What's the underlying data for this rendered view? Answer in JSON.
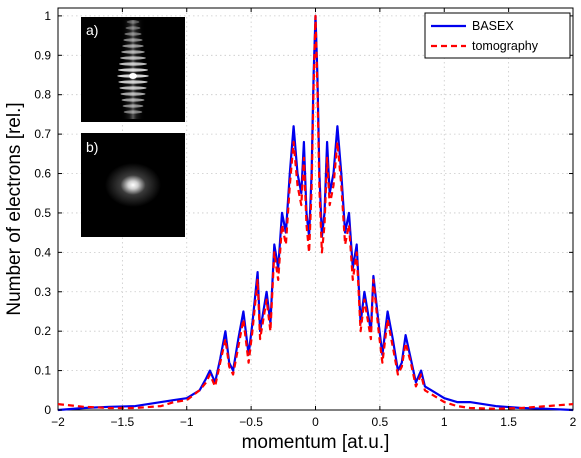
{
  "chart_data": {
    "type": "line",
    "xlabel": "momentum [at.u.]",
    "ylabel": "Number of electrons [rel.]",
    "xlim": [
      -2,
      2
    ],
    "ylim": [
      0,
      1.02
    ],
    "xticks": [
      -2,
      -1.5,
      -1,
      -0.5,
      0,
      0.5,
      1,
      1.5,
      2
    ],
    "yticks": [
      0,
      0.1,
      0.2,
      0.3,
      0.4,
      0.5,
      0.6,
      0.7,
      0.8,
      0.9,
      1
    ],
    "xtick_labels": [
      "−2",
      "−1.5",
      "−1",
      "−0.5",
      "0",
      "0.5",
      "1",
      "1.5",
      "2"
    ],
    "ytick_labels": [
      "0",
      "0.1",
      "0.2",
      "0.3",
      "0.4",
      "0.5",
      "0.6",
      "0.7",
      "0.8",
      "0.9",
      "1"
    ],
    "grid": true,
    "legend_position": "top-right",
    "series": [
      {
        "name": "BASEX",
        "color": "#0000ee",
        "style": "solid",
        "x": [
          -2.0,
          -1.8,
          -1.6,
          -1.4,
          -1.2,
          -1.1,
          -1.0,
          -0.9,
          -0.85,
          -0.82,
          -0.78,
          -0.74,
          -0.7,
          -0.67,
          -0.64,
          -0.6,
          -0.56,
          -0.52,
          -0.49,
          -0.45,
          -0.43,
          -0.41,
          -0.38,
          -0.35,
          -0.32,
          -0.29,
          -0.26,
          -0.23,
          -0.2,
          -0.17,
          -0.14,
          -0.11,
          -0.09,
          -0.07,
          -0.05,
          -0.03,
          -0.015,
          0.0,
          0.015,
          0.03,
          0.05,
          0.07,
          0.09,
          0.11,
          0.14,
          0.17,
          0.2,
          0.23,
          0.26,
          0.29,
          0.32,
          0.35,
          0.38,
          0.41,
          0.43,
          0.45,
          0.49,
          0.52,
          0.56,
          0.6,
          0.64,
          0.67,
          0.7,
          0.74,
          0.78,
          0.82,
          0.85,
          0.9,
          1.0,
          1.1,
          1.2,
          1.4,
          1.6,
          1.8,
          2.0
        ],
        "y": [
          0.0,
          0.005,
          0.008,
          0.01,
          0.02,
          0.025,
          0.03,
          0.05,
          0.08,
          0.1,
          0.07,
          0.13,
          0.2,
          0.12,
          0.1,
          0.18,
          0.25,
          0.14,
          0.22,
          0.35,
          0.2,
          0.24,
          0.3,
          0.22,
          0.42,
          0.36,
          0.5,
          0.45,
          0.6,
          0.72,
          0.6,
          0.55,
          0.68,
          0.5,
          0.44,
          0.6,
          0.85,
          1.0,
          0.85,
          0.6,
          0.44,
          0.5,
          0.68,
          0.55,
          0.6,
          0.72,
          0.6,
          0.45,
          0.5,
          0.36,
          0.42,
          0.22,
          0.3,
          0.24,
          0.2,
          0.34,
          0.22,
          0.14,
          0.25,
          0.18,
          0.1,
          0.12,
          0.19,
          0.13,
          0.07,
          0.1,
          0.06,
          0.05,
          0.03,
          0.02,
          0.02,
          0.01,
          0.005,
          0.003,
          0.0
        ]
      },
      {
        "name": "tomography",
        "color": "#ff0000",
        "style": "dashed",
        "x": [
          -2.0,
          -1.8,
          -1.6,
          -1.4,
          -1.2,
          -1.1,
          -1.0,
          -0.9,
          -0.85,
          -0.82,
          -0.78,
          -0.74,
          -0.7,
          -0.67,
          -0.64,
          -0.6,
          -0.56,
          -0.52,
          -0.49,
          -0.45,
          -0.43,
          -0.41,
          -0.38,
          -0.35,
          -0.32,
          -0.29,
          -0.26,
          -0.23,
          -0.2,
          -0.17,
          -0.14,
          -0.11,
          -0.09,
          -0.07,
          -0.05,
          -0.03,
          -0.015,
          0.0,
          0.015,
          0.03,
          0.05,
          0.07,
          0.09,
          0.11,
          0.14,
          0.17,
          0.2,
          0.23,
          0.26,
          0.29,
          0.32,
          0.35,
          0.38,
          0.41,
          0.43,
          0.45,
          0.49,
          0.52,
          0.56,
          0.6,
          0.64,
          0.67,
          0.7,
          0.74,
          0.78,
          0.82,
          0.85,
          0.9,
          1.0,
          1.1,
          1.2,
          1.4,
          1.6,
          1.8,
          2.0
        ],
        "y": [
          0.015,
          0.008,
          0.005,
          0.005,
          0.01,
          0.02,
          0.025,
          0.05,
          0.07,
          0.09,
          0.06,
          0.12,
          0.18,
          0.11,
          0.09,
          0.16,
          0.23,
          0.12,
          0.2,
          0.33,
          0.18,
          0.22,
          0.28,
          0.2,
          0.4,
          0.33,
          0.47,
          0.42,
          0.57,
          0.68,
          0.57,
          0.52,
          0.64,
          0.47,
          0.4,
          0.56,
          0.82,
          1.0,
          0.82,
          0.56,
          0.4,
          0.47,
          0.64,
          0.52,
          0.57,
          0.68,
          0.57,
          0.42,
          0.47,
          0.33,
          0.4,
          0.2,
          0.28,
          0.22,
          0.18,
          0.33,
          0.2,
          0.12,
          0.23,
          0.16,
          0.09,
          0.11,
          0.17,
          0.12,
          0.06,
          0.09,
          0.05,
          0.04,
          0.02,
          0.01,
          0.005,
          0.003,
          0.005,
          0.01,
          0.015
        ]
      }
    ],
    "insets": [
      {
        "label": "a)",
        "pattern": "vertical-fringes"
      },
      {
        "label": "b)",
        "pattern": "central-spot"
      }
    ]
  }
}
